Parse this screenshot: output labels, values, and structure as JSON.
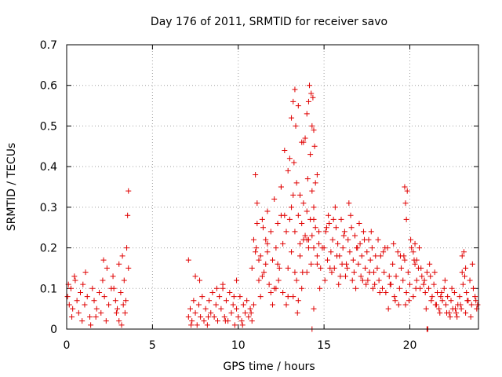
{
  "chart_data": {
    "type": "scatter",
    "title": "Day 176 of 2011, SRMTID for receiver savo",
    "xlabel": "GPS time / hours",
    "ylabel": "SRMTID / TECUs",
    "xlim": [
      0,
      24
    ],
    "ylim": [
      0,
      0.7
    ],
    "xticks": [
      0,
      5,
      10,
      15,
      20
    ],
    "xtick_labels": [
      "0",
      "5",
      "10",
      "15",
      "20"
    ],
    "yticks": [
      0,
      0.1,
      0.2,
      0.3,
      0.4,
      0.5,
      0.6,
      0.7
    ],
    "ytick_labels": [
      "0",
      "0.1",
      "0.2",
      "0.3",
      "0.4",
      "0.5",
      "0.6",
      "0.7"
    ],
    "grid": true,
    "marker": "+",
    "color": "#e00000",
    "series": [
      {
        "name": "SRMTID",
        "x": [
          0.05,
          0.15,
          0.25,
          0.35,
          0.5,
          0.6,
          0.7,
          0.8,
          0.95,
          1.05,
          1.2,
          1.35,
          1.5,
          1.6,
          1.75,
          1.9,
          2.0,
          2.1,
          2.2,
          2.35,
          2.45,
          2.6,
          2.7,
          2.85,
          2.95,
          3.05,
          3.15,
          3.25,
          3.35,
          3.45,
          3.5,
          3.6,
          0.3,
          0.9,
          1.4,
          2.3,
          2.9,
          3.2,
          3.55,
          3.6,
          3.3,
          0.1,
          0.45,
          1.1,
          1.7,
          2.15,
          2.75,
          3.05,
          3.4,
          7.1,
          7.2,
          7.3,
          7.4,
          7.5,
          7.6,
          7.7,
          7.8,
          7.9,
          8.0,
          8.1,
          8.2,
          8.3,
          8.4,
          8.5,
          8.6,
          8.7,
          8.8,
          8.9,
          9.0,
          9.1,
          9.2,
          9.3,
          9.4,
          9.5,
          9.6,
          9.7,
          9.8,
          9.9,
          10.0,
          10.1,
          10.2,
          10.3,
          10.4,
          10.5,
          10.6,
          10.7,
          10.8,
          10.9,
          7.25,
          7.75,
          8.25,
          8.75,
          9.25,
          9.75,
          10.25,
          10.75,
          7.1,
          7.5,
          9.1,
          9.9,
          10.8,
          10.9,
          11.0,
          11.1,
          11.2,
          11.3,
          11.4,
          11.5,
          11.6,
          11.7,
          11.8,
          11.9,
          12.0,
          12.1,
          12.2,
          12.3,
          12.4,
          12.5,
          12.6,
          12.7,
          12.8,
          12.9,
          13.0,
          13.1,
          13.2,
          13.3,
          13.4,
          13.5,
          13.6,
          13.7,
          13.8,
          13.9,
          14.0,
          14.1,
          14.2,
          14.3,
          14.4,
          14.5,
          14.6,
          14.7,
          14.8,
          14.9,
          11.0,
          11.3,
          11.6,
          11.9,
          12.2,
          12.5,
          12.8,
          13.1,
          13.4,
          13.7,
          14.0,
          14.3,
          14.6,
          11.1,
          11.4,
          11.7,
          12.0,
          12.3,
          12.6,
          12.9,
          13.2,
          13.5,
          13.8,
          14.1,
          14.4,
          14.7,
          13.1,
          13.2,
          13.3,
          13.35,
          13.5,
          13.7,
          13.9,
          14.0,
          14.1,
          14.15,
          14.25,
          14.3,
          14.35,
          14.4,
          14.45,
          14.5,
          12.5,
          12.7,
          13.0,
          13.25,
          13.6,
          13.8,
          14.05,
          14.2,
          14.4,
          14.6,
          11.05,
          11.2,
          11.45,
          11.7,
          12.1,
          12.35,
          12.9,
          13.45,
          13.75,
          14.25,
          14.75,
          13.3,
          13.6,
          14.0,
          14.3,
          14.4,
          15.0,
          15.1,
          15.2,
          15.3,
          15.4,
          15.5,
          15.6,
          15.7,
          15.8,
          15.9,
          16.0,
          16.1,
          16.2,
          16.3,
          16.4,
          16.5,
          16.6,
          16.7,
          16.8,
          16.9,
          17.0,
          17.1,
          17.2,
          17.3,
          17.4,
          17.5,
          17.6,
          17.7,
          17.8,
          17.9,
          18.0,
          15.05,
          15.25,
          15.45,
          15.65,
          15.85,
          16.05,
          16.25,
          16.45,
          16.65,
          16.85,
          17.05,
          17.25,
          17.45,
          17.65,
          17.85,
          15.15,
          15.35,
          15.55,
          15.75,
          15.95,
          16.15,
          16.35,
          16.55,
          16.75,
          16.95,
          17.15,
          17.35,
          17.55,
          17.75,
          17.95,
          18.1,
          18.2,
          18.3,
          18.4,
          18.5,
          18.6,
          18.7,
          18.8,
          18.9,
          19.0,
          19.1,
          19.2,
          19.3,
          19.4,
          19.5,
          19.6,
          19.7,
          19.8,
          19.9,
          20.0,
          20.1,
          20.2,
          20.3,
          20.4,
          20.5,
          20.6,
          20.7,
          20.8,
          20.9,
          21.0,
          18.15,
          18.45,
          18.75,
          19.05,
          19.35,
          19.65,
          19.95,
          20.25,
          20.55,
          20.85,
          18.25,
          18.55,
          18.85,
          19.15,
          19.45,
          19.75,
          20.05,
          20.35,
          20.65,
          20.95,
          19.7,
          19.75,
          19.8,
          19.85,
          20.2,
          20.3,
          20.4,
          21.1,
          21.2,
          21.3,
          21.4,
          21.5,
          21.6,
          21.7,
          21.8,
          21.9,
          22.0,
          22.1,
          22.2,
          22.3,
          22.4,
          22.5,
          22.6,
          22.7,
          22.8,
          22.9,
          23.0,
          23.1,
          23.2,
          23.3,
          23.4,
          23.5,
          23.6,
          23.7,
          23.8,
          23.9,
          21.15,
          21.45,
          21.75,
          22.05,
          22.35,
          22.65,
          22.95,
          23.25,
          23.55,
          23.85,
          21.25,
          21.55,
          21.85,
          22.15,
          22.45,
          22.75,
          23.05,
          23.35,
          23.65,
          23.95,
          21.0,
          21.05,
          23.05,
          23.15,
          23.25
        ],
        "y": [
          0.08,
          0.06,
          0.1,
          0.05,
          0.12,
          0.07,
          0.04,
          0.09,
          0.11,
          0.06,
          0.08,
          0.03,
          0.1,
          0.07,
          0.05,
          0.09,
          0.04,
          0.12,
          0.08,
          0.15,
          0.06,
          0.1,
          0.13,
          0.07,
          0.05,
          0.16,
          0.09,
          0.18,
          0.12,
          0.07,
          0.2,
          0.15,
          0.03,
          0.02,
          0.01,
          0.02,
          0.04,
          0.01,
          0.28,
          0.34,
          0.06,
          0.11,
          0.13,
          0.14,
          0.03,
          0.17,
          0.1,
          0.02,
          0.04,
          0.03,
          0.05,
          0.02,
          0.07,
          0.04,
          0.01,
          0.06,
          0.03,
          0.08,
          0.02,
          0.05,
          0.01,
          0.07,
          0.04,
          0.09,
          0.03,
          0.06,
          0.02,
          0.08,
          0.05,
          0.1,
          0.03,
          0.07,
          0.02,
          0.09,
          0.04,
          0.06,
          0.01,
          0.05,
          0.03,
          0.08,
          0.02,
          0.06,
          0.04,
          0.07,
          0.03,
          0.05,
          0.02,
          0.06,
          0.01,
          0.12,
          0.03,
          0.1,
          0.02,
          0.08,
          0.01,
          0.04,
          0.17,
          0.13,
          0.11,
          0.12,
          0.15,
          0.22,
          0.19,
          0.31,
          0.12,
          0.18,
          0.27,
          0.14,
          0.22,
          0.29,
          0.11,
          0.24,
          0.17,
          0.32,
          0.2,
          0.26,
          0.15,
          0.35,
          0.21,
          0.28,
          0.24,
          0.39,
          0.27,
          0.19,
          0.33,
          0.24,
          0.36,
          0.28,
          0.21,
          0.26,
          0.31,
          0.23,
          0.29,
          0.22,
          0.27,
          0.34,
          0.2,
          0.25,
          0.18,
          0.21,
          0.15,
          0.2,
          0.38,
          0.08,
          0.16,
          0.09,
          0.1,
          0.28,
          0.06,
          0.3,
          0.12,
          0.1,
          0.14,
          0.23,
          0.16,
          0.26,
          0.13,
          0.21,
          0.06,
          0.16,
          0.09,
          0.15,
          0.08,
          0.07,
          0.22,
          0.2,
          0.05,
          0.24,
          0.52,
          0.56,
          0.59,
          0.5,
          0.55,
          0.46,
          0.47,
          0.53,
          0.56,
          0.6,
          0.58,
          0.5,
          0.57,
          0.49,
          0.45,
          0.36,
          0.35,
          0.44,
          0.42,
          0.41,
          0.33,
          0.46,
          0.37,
          0.43,
          0.3,
          0.38,
          0.2,
          0.17,
          0.25,
          0.19,
          0.1,
          0.12,
          0.08,
          0.04,
          0.14,
          0.16,
          0.1,
          0.14,
          0.18,
          0.22,
          0.0,
          0.27,
          0.2,
          0.24,
          0.17,
          0.26,
          0.19,
          0.22,
          0.15,
          0.25,
          0.21,
          0.18,
          0.27,
          0.2,
          0.24,
          0.16,
          0.22,
          0.19,
          0.25,
          0.17,
          0.23,
          0.2,
          0.16,
          0.21,
          0.18,
          0.24,
          0.15,
          0.19,
          0.22,
          0.17,
          0.2,
          0.14,
          0.18,
          0.12,
          0.28,
          0.14,
          0.3,
          0.11,
          0.16,
          0.13,
          0.31,
          0.12,
          0.1,
          0.26,
          0.12,
          0.11,
          0.14,
          0.1,
          0.25,
          0.15,
          0.27,
          0.18,
          0.13,
          0.23,
          0.15,
          0.28,
          0.14,
          0.2,
          0.13,
          0.22,
          0.12,
          0.24,
          0.11,
          0.15,
          0.12,
          0.18,
          0.1,
          0.14,
          0.09,
          0.2,
          0.13,
          0.11,
          0.16,
          0.08,
          0.13,
          0.19,
          0.1,
          0.15,
          0.12,
          0.17,
          0.09,
          0.14,
          0.11,
          0.2,
          0.08,
          0.16,
          0.12,
          0.15,
          0.1,
          0.13,
          0.11,
          0.09,
          0.14,
          0.22,
          0.19,
          0.05,
          0.21,
          0.06,
          0.18,
          0.07,
          0.17,
          0.2,
          0.12,
          0.09,
          0.2,
          0.11,
          0.07,
          0.18,
          0.06,
          0.22,
          0.1,
          0.15,
          0.05,
          0.35,
          0.31,
          0.27,
          0.34,
          0.19,
          0.21,
          0.17,
          0.1,
          0.13,
          0.08,
          0.11,
          0.06,
          0.09,
          0.05,
          0.08,
          0.07,
          0.1,
          0.06,
          0.08,
          0.04,
          0.07,
          0.05,
          0.09,
          0.04,
          0.06,
          0.08,
          0.05,
          0.11,
          0.13,
          0.09,
          0.07,
          0.12,
          0.06,
          0.1,
          0.08,
          0.05,
          0.16,
          0.14,
          0.04,
          0.12,
          0.03,
          0.05,
          0.06,
          0.04,
          0.03,
          0.07,
          0.07,
          0.06,
          0.09,
          0.04,
          0.1,
          0.03,
          0.14,
          0.07,
          0.16,
          0.06,
          0.0,
          0.0,
          0.18,
          0.19,
          0.15
        ]
      }
    ]
  }
}
